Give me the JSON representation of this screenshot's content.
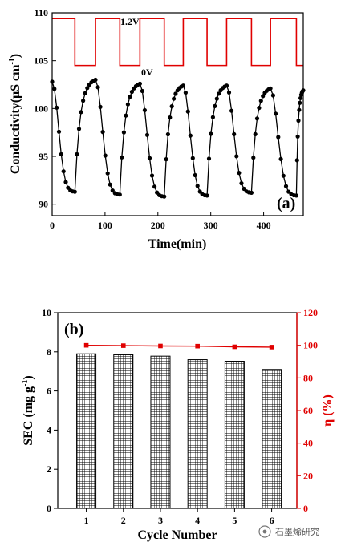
{
  "chart_data": [
    {
      "panel_label": "(a)",
      "type": "line",
      "xlabel": "Time(min)",
      "ylabel": "Conductivity(μS cm",
      "ylabel_superscript": "-1",
      "ylabel_close": ")",
      "xlim": [
        0,
        475
      ],
      "ylim": [
        88.8,
        110
      ],
      "xticks": [
        0,
        100,
        200,
        300,
        400
      ],
      "yticks": [
        90,
        95,
        100,
        105,
        110
      ],
      "voltage": {
        "high_label": "1.2V",
        "low_label": "0V",
        "high_level": 109.4,
        "low_level": 104.5,
        "high_intervals": [
          [
            0,
            43
          ],
          [
            82,
            128
          ],
          [
            166,
            212
          ],
          [
            248,
            293
          ],
          [
            330,
            377
          ],
          [
            413,
            462
          ]
        ],
        "color": "#e00000"
      },
      "series": [
        {
          "color": "#000000",
          "cycles": [
            {
              "start": 0,
              "end": 43,
              "from": 102.8,
              "to": 91.3,
              "kind": "fall"
            },
            {
              "start": 43,
              "end": 82,
              "from": 91.3,
              "to": 103.0,
              "kind": "rise"
            },
            {
              "start": 82,
              "end": 128,
              "from": 103.0,
              "to": 91.0,
              "kind": "fall"
            },
            {
              "start": 128,
              "end": 166,
              "from": 91.0,
              "to": 102.6,
              "kind": "rise"
            },
            {
              "start": 166,
              "end": 212,
              "from": 102.6,
              "to": 90.8,
              "kind": "fall"
            },
            {
              "start": 212,
              "end": 248,
              "from": 90.8,
              "to": 102.4,
              "kind": "rise"
            },
            {
              "start": 248,
              "end": 293,
              "from": 102.4,
              "to": 90.9,
              "kind": "fall"
            },
            {
              "start": 293,
              "end": 330,
              "from": 90.9,
              "to": 102.4,
              "kind": "rise"
            },
            {
              "start": 330,
              "end": 377,
              "from": 102.4,
              "to": 91.2,
              "kind": "fall"
            },
            {
              "start": 377,
              "end": 413,
              "from": 91.2,
              "to": 102.1,
              "kind": "rise"
            },
            {
              "start": 413,
              "end": 462,
              "from": 102.1,
              "to": 90.9,
              "kind": "fall"
            },
            {
              "start": 462,
              "end": 475,
              "from": 90.9,
              "to": 101.9,
              "kind": "rise"
            }
          ]
        }
      ]
    },
    {
      "panel_label": "(b)",
      "type": "bar",
      "xlabel": "Cycle Number",
      "ylabel": "SEC (mg g",
      "ylabel_superscript": "-1",
      "ylabel_close": ")",
      "y2label": "η (%)",
      "categories": [
        "1",
        "2",
        "3",
        "4",
        "5",
        "6"
      ],
      "ylim": [
        0,
        10
      ],
      "yticks": [
        0,
        2,
        4,
        6,
        8,
        10
      ],
      "y2lim": [
        0,
        120
      ],
      "y2ticks": [
        0,
        20,
        40,
        60,
        80,
        100,
        120
      ],
      "bars": {
        "values": [
          7.9,
          7.85,
          7.78,
          7.6,
          7.52,
          7.1
        ],
        "pattern": "grid"
      },
      "line": {
        "values": [
          100,
          99.8,
          99.6,
          99.5,
          99.1,
          98.9
        ],
        "color": "#e00000",
        "axis": "right"
      }
    }
  ],
  "watermark": "石墨烯研究"
}
